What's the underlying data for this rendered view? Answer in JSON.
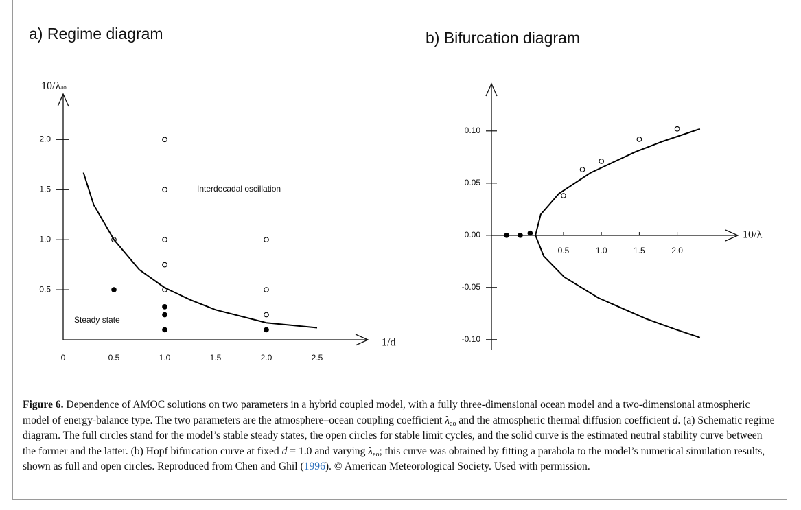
{
  "chart_data": [
    {
      "type": "scatter",
      "title": "a) Regime diagram",
      "x_label": "1/d",
      "y_label": "10/λ",
      "y_label_sub": "ao",
      "annotations": [
        "Interdecadal oscillation",
        "Steady state"
      ],
      "xlim": [
        0,
        3.0
      ],
      "ylim": [
        0,
        2.4
      ],
      "xticks": [
        0,
        0.5,
        {
          "value": 1,
          "label": "1.0"
        },
        1.5,
        {
          "value": 2,
          "label": "2.0"
        },
        2.5
      ],
      "yticks": [
        0.5,
        {
          "value": 1,
          "label": "1.0"
        },
        1.5,
        {
          "value": 2,
          "label": "2.0"
        }
      ],
      "series": [
        {
          "marker": "open",
          "color": "#000000",
          "x": [
            0.5,
            1,
            1,
            1,
            1,
            1,
            2,
            2,
            2
          ],
          "values": [
            1.0,
            2.0,
            1.5,
            1.0,
            0.75,
            0.5,
            1.0,
            0.5,
            0.25
          ]
        },
        {
          "marker": "filled",
          "color": "#000000",
          "x": [
            0.5,
            1,
            1,
            1,
            2
          ],
          "values": [
            0.5,
            0.33,
            0.25,
            0.1,
            0.1
          ]
        },
        {
          "marker": "line",
          "color": "#000000",
          "x": [
            0.2,
            0.3,
            0.5,
            0.75,
            1.0,
            1.25,
            1.5,
            2.0,
            2.5
          ],
          "values": [
            1.67,
            1.35,
            1.0,
            0.7,
            0.52,
            0.4,
            0.3,
            0.17,
            0.12
          ]
        }
      ]
    },
    {
      "type": "scatter",
      "title": "b) Bifurcation diagram",
      "x_label": "10/λ",
      "xlim": [
        -0.45,
        2.8
      ],
      "ylim": [
        -0.11,
        0.14
      ],
      "xticks": [
        0.5,
        {
          "value": 1,
          "label": "1.0"
        },
        1.5,
        {
          "value": 2,
          "label": "2.0"
        }
      ],
      "yticks": [
        {
          "value": 0.1,
          "label": "0.10"
        },
        {
          "value": 0.05,
          "label": "0.05"
        },
        {
          "value": 0,
          "label": "0.00"
        },
        {
          "value": -0.05,
          "label": "-0.05"
        },
        {
          "value": -0.1,
          "label": "-0.10"
        }
      ],
      "series": [
        {
          "marker": "open",
          "color": "#000000",
          "x": [
            0.5,
            0.75,
            1.0,
            1.5,
            2.0
          ],
          "values": [
            0.038,
            0.063,
            0.071,
            0.092,
            0.102
          ]
        },
        {
          "marker": "filled",
          "color": "#000000",
          "x": [
            -0.25,
            -0.07,
            0.06
          ],
          "values": [
            0,
            0,
            0.002
          ]
        },
        {
          "marker": "line",
          "color": "#000000",
          "x": [
            2.3,
            1.97,
            1.59,
            0.96,
            0.51,
            0.24,
            0.13,
            0.2,
            0.44,
            0.86,
            1.45,
            1.81,
            2.3
          ],
          "values": [
            -0.098,
            -0.09,
            -0.08,
            -0.06,
            -0.04,
            -0.02,
            0,
            0.02,
            0.04,
            0.06,
            0.08,
            0.09,
            0.102
          ]
        }
      ]
    }
  ],
  "caption": {
    "label": "Figure 6.",
    "parts": [
      " Dependence of AMOC solutions on two parameters in a hybrid coupled model, with a fully three-dimensional ocean model and a two-dimensional atmospheric model of energy-balance type. The two parameters are the atmosphere–ocean coupling coefficient ",
      "λ",
      "ao",
      " and the atmospheric thermal diffusion coefficient ",
      "d",
      ". (a) Schematic regime diagram. The full circles stand for the model’s stable steady states, the open circles for stable limit cycles, and the solid curve is the estimated neutral stability curve between the former and the latter. (b) Hopf bifurcation curve at fixed ",
      "d",
      " = 1.0 and varying ",
      "λ",
      "ao",
      "; this curve was obtained by fitting a parabola to the model’s numerical simulation results, shown as full and open circles. Reproduced from Chen and Ghil (",
      "1996",
      "). © American Meteorological Society. Used with permission."
    ]
  }
}
